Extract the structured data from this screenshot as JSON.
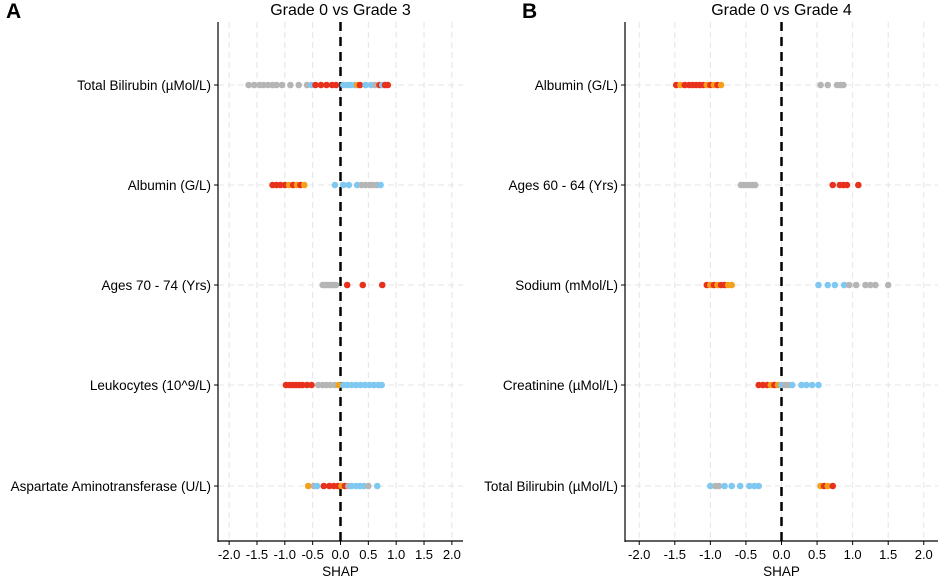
{
  "chart_data": [
    {
      "type": "scatter",
      "panel_label": "A",
      "title": "Grade 0 vs Grade 3",
      "xlabel": "SHAP",
      "ylabel": "",
      "xlim": [
        -2.2,
        2.2
      ],
      "grid": true,
      "reference_line": 0,
      "xticks": [
        -2.0,
        -1.5,
        -1.0,
        -0.5,
        0.0,
        0.5,
        1.0,
        1.5,
        2.0
      ],
      "xtick_labels": [
        "-2.0",
        "-1.5",
        "-1.0",
        "-0.5",
        "0.0",
        "0.5",
        "1.0",
        "1.5",
        "2.0"
      ],
      "categories": [
        "Total Bilirubin (µMol/L)",
        "Albumin (G/L)",
        "Ages 70 - 74 (Yrs)",
        "Leukocytes (10^9/L)",
        "Aspartate Aminotransferase (U/L)"
      ],
      "series": [
        {
          "feature": "Total Bilirubin (µMol/L)",
          "points": [
            {
              "x": -1.65,
              "c": "grey"
            },
            {
              "x": -1.55,
              "c": "grey"
            },
            {
              "x": -1.45,
              "c": "grey"
            },
            {
              "x": -1.38,
              "c": "grey"
            },
            {
              "x": -1.3,
              "c": "grey"
            },
            {
              "x": -1.22,
              "c": "grey"
            },
            {
              "x": -1.15,
              "c": "grey"
            },
            {
              "x": -1.05,
              "c": "grey"
            },
            {
              "x": -0.9,
              "c": "grey"
            },
            {
              "x": -0.75,
              "c": "grey"
            },
            {
              "x": -0.6,
              "c": "grey"
            },
            {
              "x": -0.52,
              "c": "blue"
            },
            {
              "x": -0.45,
              "c": "red"
            },
            {
              "x": -0.35,
              "c": "red"
            },
            {
              "x": -0.25,
              "c": "red"
            },
            {
              "x": -0.15,
              "c": "red"
            },
            {
              "x": -0.08,
              "c": "red"
            },
            {
              "x": 0.05,
              "c": "blue"
            },
            {
              "x": 0.12,
              "c": "blue"
            },
            {
              "x": 0.18,
              "c": "blue"
            },
            {
              "x": 0.25,
              "c": "blue"
            },
            {
              "x": 0.3,
              "c": "orange"
            },
            {
              "x": 0.35,
              "c": "red"
            },
            {
              "x": 0.45,
              "c": "blue"
            },
            {
              "x": 0.55,
              "c": "blue"
            },
            {
              "x": 0.62,
              "c": "grey"
            },
            {
              "x": 0.7,
              "c": "red"
            },
            {
              "x": 0.75,
              "c": "blue"
            },
            {
              "x": 0.8,
              "c": "red"
            },
            {
              "x": 0.85,
              "c": "red"
            }
          ]
        },
        {
          "feature": "Albumin (G/L)",
          "points": [
            {
              "x": -1.22,
              "c": "red"
            },
            {
              "x": -1.15,
              "c": "red"
            },
            {
              "x": -1.08,
              "c": "red"
            },
            {
              "x": -1.0,
              "c": "red"
            },
            {
              "x": -0.92,
              "c": "orange"
            },
            {
              "x": -0.85,
              "c": "red"
            },
            {
              "x": -0.78,
              "c": "orange"
            },
            {
              "x": -0.72,
              "c": "red"
            },
            {
              "x": -0.65,
              "c": "orange"
            },
            {
              "x": -0.1,
              "c": "blue"
            },
            {
              "x": 0.05,
              "c": "blue"
            },
            {
              "x": 0.15,
              "c": "blue"
            },
            {
              "x": 0.3,
              "c": "blue"
            },
            {
              "x": 0.38,
              "c": "grey"
            },
            {
              "x": 0.45,
              "c": "grey"
            },
            {
              "x": 0.52,
              "c": "grey"
            },
            {
              "x": 0.58,
              "c": "grey"
            },
            {
              "x": 0.65,
              "c": "grey"
            },
            {
              "x": 0.72,
              "c": "blue"
            }
          ]
        },
        {
          "feature": "Ages 70 - 74 (Yrs)",
          "points": [
            {
              "x": -0.32,
              "c": "grey"
            },
            {
              "x": -0.28,
              "c": "grey"
            },
            {
              "x": -0.24,
              "c": "grey"
            },
            {
              "x": -0.2,
              "c": "grey"
            },
            {
              "x": -0.16,
              "c": "grey"
            },
            {
              "x": -0.12,
              "c": "grey"
            },
            {
              "x": -0.08,
              "c": "grey"
            },
            {
              "x": 0.12,
              "c": "red"
            },
            {
              "x": 0.4,
              "c": "red"
            },
            {
              "x": 0.75,
              "c": "red"
            }
          ]
        },
        {
          "feature": "Leukocytes (10^9/L)",
          "points": [
            {
              "x": -0.98,
              "c": "red"
            },
            {
              "x": -0.92,
              "c": "red"
            },
            {
              "x": -0.86,
              "c": "red"
            },
            {
              "x": -0.8,
              "c": "red"
            },
            {
              "x": -0.74,
              "c": "red"
            },
            {
              "x": -0.68,
              "c": "red"
            },
            {
              "x": -0.6,
              "c": "red"
            },
            {
              "x": -0.52,
              "c": "red"
            },
            {
              "x": -0.4,
              "c": "grey"
            },
            {
              "x": -0.32,
              "c": "grey"
            },
            {
              "x": -0.25,
              "c": "grey"
            },
            {
              "x": -0.18,
              "c": "grey"
            },
            {
              "x": -0.1,
              "c": "grey"
            },
            {
              "x": -0.03,
              "c": "orange"
            },
            {
              "x": 0.05,
              "c": "blue"
            },
            {
              "x": 0.12,
              "c": "blue"
            },
            {
              "x": 0.2,
              "c": "blue"
            },
            {
              "x": 0.28,
              "c": "blue"
            },
            {
              "x": 0.36,
              "c": "blue"
            },
            {
              "x": 0.44,
              "c": "blue"
            },
            {
              "x": 0.52,
              "c": "blue"
            },
            {
              "x": 0.6,
              "c": "blue"
            },
            {
              "x": 0.68,
              "c": "blue"
            },
            {
              "x": 0.74,
              "c": "blue"
            }
          ]
        },
        {
          "feature": "Aspartate Aminotransferase (U/L)",
          "points": [
            {
              "x": -0.58,
              "c": "orange"
            },
            {
              "x": -0.48,
              "c": "grey"
            },
            {
              "x": -0.42,
              "c": "blue"
            },
            {
              "x": -0.3,
              "c": "red"
            },
            {
              "x": -0.2,
              "c": "red"
            },
            {
              "x": -0.12,
              "c": "red"
            },
            {
              "x": -0.05,
              "c": "red"
            },
            {
              "x": 0.02,
              "c": "orange"
            },
            {
              "x": 0.08,
              "c": "red"
            },
            {
              "x": 0.14,
              "c": "grey"
            },
            {
              "x": 0.2,
              "c": "blue"
            },
            {
              "x": 0.28,
              "c": "blue"
            },
            {
              "x": 0.35,
              "c": "blue"
            },
            {
              "x": 0.42,
              "c": "blue"
            },
            {
              "x": 0.5,
              "c": "grey"
            },
            {
              "x": 0.66,
              "c": "blue"
            }
          ]
        }
      ]
    },
    {
      "type": "scatter",
      "panel_label": "B",
      "title": "Grade 0 vs Grade 4",
      "xlabel": "SHAP",
      "ylabel": "",
      "xlim": [
        -2.2,
        2.2
      ],
      "grid": true,
      "reference_line": 0,
      "xticks": [
        -2.0,
        -1.5,
        -1.0,
        -0.5,
        0.0,
        0.5,
        1.0,
        1.5,
        2.0
      ],
      "xtick_labels": [
        "-2.0",
        "-1.5",
        "-1.0",
        "-0.5",
        "0.0",
        "0.5",
        "1.0",
        "1.5",
        "2.0"
      ],
      "categories": [
        "Albumin (G/L)",
        "Ages 60 - 64 (Yrs)",
        "Sodium (mMol/L)",
        "Creatinine (µMol/L)",
        "Total Bilirubin (µMol/L)"
      ],
      "series": [
        {
          "feature": "Albumin (G/L)",
          "points": [
            {
              "x": -1.48,
              "c": "red"
            },
            {
              "x": -1.42,
              "c": "orange"
            },
            {
              "x": -1.36,
              "c": "red"
            },
            {
              "x": -1.3,
              "c": "red"
            },
            {
              "x": -1.25,
              "c": "red"
            },
            {
              "x": -1.2,
              "c": "red"
            },
            {
              "x": -1.15,
              "c": "red"
            },
            {
              "x": -1.1,
              "c": "red"
            },
            {
              "x": -1.05,
              "c": "orange"
            },
            {
              "x": -1.0,
              "c": "red"
            },
            {
              "x": -0.95,
              "c": "orange"
            },
            {
              "x": -0.9,
              "c": "red"
            },
            {
              "x": -0.85,
              "c": "orange"
            },
            {
              "x": 0.55,
              "c": "grey"
            },
            {
              "x": 0.65,
              "c": "grey"
            },
            {
              "x": 0.78,
              "c": "grey"
            },
            {
              "x": 0.83,
              "c": "grey"
            },
            {
              "x": 0.87,
              "c": "grey"
            }
          ]
        },
        {
          "feature": "Ages 60 - 64 (Yrs)",
          "points": [
            {
              "x": -0.57,
              "c": "grey"
            },
            {
              "x": -0.53,
              "c": "grey"
            },
            {
              "x": -0.49,
              "c": "grey"
            },
            {
              "x": -0.45,
              "c": "grey"
            },
            {
              "x": -0.41,
              "c": "grey"
            },
            {
              "x": -0.37,
              "c": "grey"
            },
            {
              "x": 0.72,
              "c": "red"
            },
            {
              "x": 0.82,
              "c": "red"
            },
            {
              "x": 0.87,
              "c": "red"
            },
            {
              "x": 0.92,
              "c": "red"
            },
            {
              "x": 1.08,
              "c": "red"
            }
          ]
        },
        {
          "feature": "Sodium (mMol/L)",
          "points": [
            {
              "x": -1.05,
              "c": "red"
            },
            {
              "x": -1.0,
              "c": "orange"
            },
            {
              "x": -0.95,
              "c": "red"
            },
            {
              "x": -0.9,
              "c": "orange"
            },
            {
              "x": -0.85,
              "c": "red"
            },
            {
              "x": -0.8,
              "c": "red"
            },
            {
              "x": -0.75,
              "c": "orange"
            },
            {
              "x": -0.7,
              "c": "orange"
            },
            {
              "x": 0.52,
              "c": "blue"
            },
            {
              "x": 0.65,
              "c": "blue"
            },
            {
              "x": 0.75,
              "c": "blue"
            },
            {
              "x": 0.88,
              "c": "blue"
            },
            {
              "x": 0.95,
              "c": "grey"
            },
            {
              "x": 1.05,
              "c": "grey"
            },
            {
              "x": 1.18,
              "c": "grey"
            },
            {
              "x": 1.25,
              "c": "grey"
            },
            {
              "x": 1.32,
              "c": "grey"
            },
            {
              "x": 1.5,
              "c": "grey"
            }
          ]
        },
        {
          "feature": "Creatinine (µMol/L)",
          "points": [
            {
              "x": -0.32,
              "c": "red"
            },
            {
              "x": -0.26,
              "c": "red"
            },
            {
              "x": -0.2,
              "c": "red"
            },
            {
              "x": -0.15,
              "c": "orange"
            },
            {
              "x": -0.1,
              "c": "red"
            },
            {
              "x": -0.05,
              "c": "orange"
            },
            {
              "x": 0.0,
              "c": "blue"
            },
            {
              "x": 0.05,
              "c": "grey"
            },
            {
              "x": 0.1,
              "c": "grey"
            },
            {
              "x": 0.15,
              "c": "blue"
            },
            {
              "x": 0.28,
              "c": "blue"
            },
            {
              "x": 0.35,
              "c": "blue"
            },
            {
              "x": 0.43,
              "c": "blue"
            },
            {
              "x": 0.52,
              "c": "blue"
            }
          ]
        },
        {
          "feature": "Total Bilirubin (µMol/L)",
          "points": [
            {
              "x": -1.0,
              "c": "blue"
            },
            {
              "x": -0.93,
              "c": "grey"
            },
            {
              "x": -0.88,
              "c": "grey"
            },
            {
              "x": -0.8,
              "c": "blue"
            },
            {
              "x": -0.7,
              "c": "blue"
            },
            {
              "x": -0.58,
              "c": "blue"
            },
            {
              "x": -0.45,
              "c": "blue"
            },
            {
              "x": -0.38,
              "c": "blue"
            },
            {
              "x": -0.32,
              "c": "blue"
            },
            {
              "x": 0.55,
              "c": "orange"
            },
            {
              "x": 0.6,
              "c": "red"
            },
            {
              "x": 0.65,
              "c": "orange"
            },
            {
              "x": 0.72,
              "c": "red"
            }
          ]
        }
      ]
    }
  ],
  "colors": {
    "red": "#e8311c",
    "orange": "#f5a01a",
    "grey": "#b5b5b5",
    "blue": "#7ec8f2",
    "grid": "#e4e4e4",
    "axis": "#000000",
    "text": "#000000"
  }
}
